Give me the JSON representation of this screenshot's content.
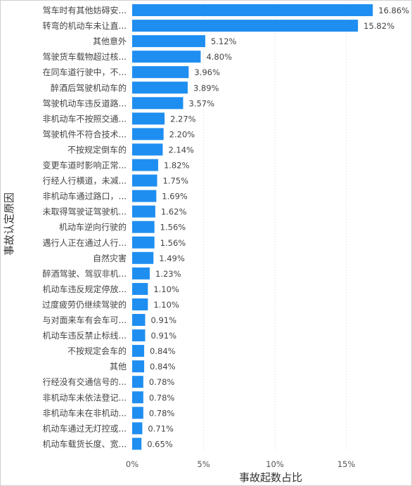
{
  "chart_data": {
    "type": "bar",
    "orientation": "horizontal",
    "xlabel": "事故起数占比",
    "ylabel": "事故认定原因",
    "xlim": [
      0,
      17.5
    ],
    "xticks": [
      0,
      5,
      10,
      15
    ],
    "xtick_labels": [
      "0%",
      "5%",
      "10%",
      "15%"
    ],
    "grid": "vertical dotted",
    "bar_color": "#1f8ef1",
    "categories": [
      "驾车时有其他妨碍安...",
      "转弯的机动车未让直...",
      "其他意外",
      "驾驶货车载物超过核...",
      "在同车道行驶中，不...",
      "醉酒后驾驶机动车的",
      "驾驶机动车违反道路...",
      "非机动车不按照交通...",
      "驾驶机件不符合技术...",
      "不按规定倒车的",
      "变更车道时影响正常...",
      "行经人行横道，未减...",
      "非机动车通过路口，...",
      "未取得驾驶证驾驶机...",
      "机动车逆向行驶的",
      "遇行人正在通过人行...",
      "自然灾害",
      "醉酒驾驶、驾驭非机...",
      "机动车违反规定停放...",
      "过度疲劳仍继续驾驶的",
      "与对面来车有会车可...",
      "机动车违反禁止标线...",
      "不按规定会车的",
      "其他",
      "行经没有交通信号的...",
      "非机动车未依法登记...",
      "非机动车未在非机动...",
      "机动车通过无灯控或...",
      "机动车载货长度、宽..."
    ],
    "values": [
      16.86,
      15.82,
      5.12,
      4.8,
      3.96,
      3.89,
      3.57,
      2.27,
      2.2,
      2.14,
      1.82,
      1.75,
      1.69,
      1.62,
      1.56,
      1.56,
      1.49,
      1.23,
      1.1,
      1.1,
      0.91,
      0.91,
      0.84,
      0.84,
      0.78,
      0.78,
      0.78,
      0.71,
      0.65
    ],
    "value_labels": [
      "16.86%",
      "15.82%",
      "5.12%",
      "4.80%",
      "3.96%",
      "3.89%",
      "3.57%",
      "2.27%",
      "2.20%",
      "2.14%",
      "1.82%",
      "1.75%",
      "1.69%",
      "1.62%",
      "1.56%",
      "1.56%",
      "1.49%",
      "1.23%",
      "1.10%",
      "1.10%",
      "0.91%",
      "0.91%",
      "0.84%",
      "0.84%",
      "0.78%",
      "0.78%",
      "0.78%",
      "0.71%",
      "0.65%"
    ]
  }
}
